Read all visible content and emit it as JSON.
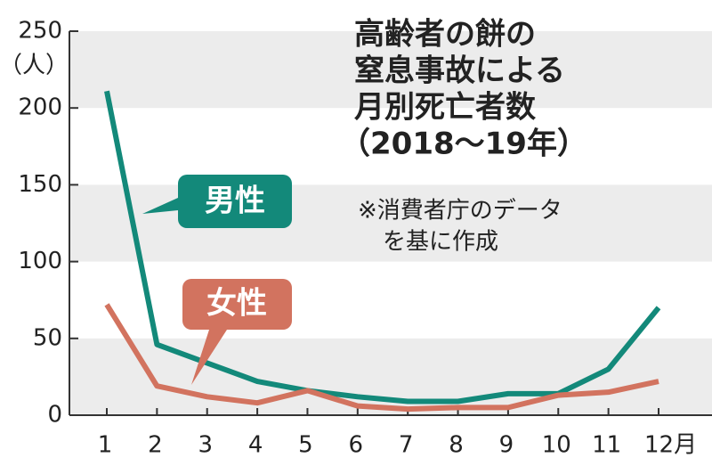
{
  "chart_data": {
    "type": "line",
    "title": [
      "高齢者の餅の",
      "窒息事故による",
      "月別死亡者数",
      "（2018〜19年）"
    ],
    "note": [
      "※消費者庁のデータ",
      "を基に作成"
    ],
    "y_label": "（人）",
    "categories": [
      "1",
      "2",
      "3",
      "4",
      "5",
      "6",
      "7",
      "8",
      "9",
      "10",
      "11",
      "12月"
    ],
    "series": [
      {
        "name": "男性",
        "color": "#13897a",
        "values": [
          211,
          46,
          34,
          22,
          16,
          12,
          9,
          9,
          14,
          14,
          30,
          70
        ]
      },
      {
        "name": "女性",
        "color": "#d2735f",
        "values": [
          72,
          19,
          12,
          8,
          16,
          6,
          4,
          5,
          5,
          13,
          15,
          22
        ]
      }
    ],
    "ylim": [
      0,
      250
    ],
    "yticks": [
      0,
      50,
      100,
      150,
      200,
      250
    ],
    "bands": true
  }
}
